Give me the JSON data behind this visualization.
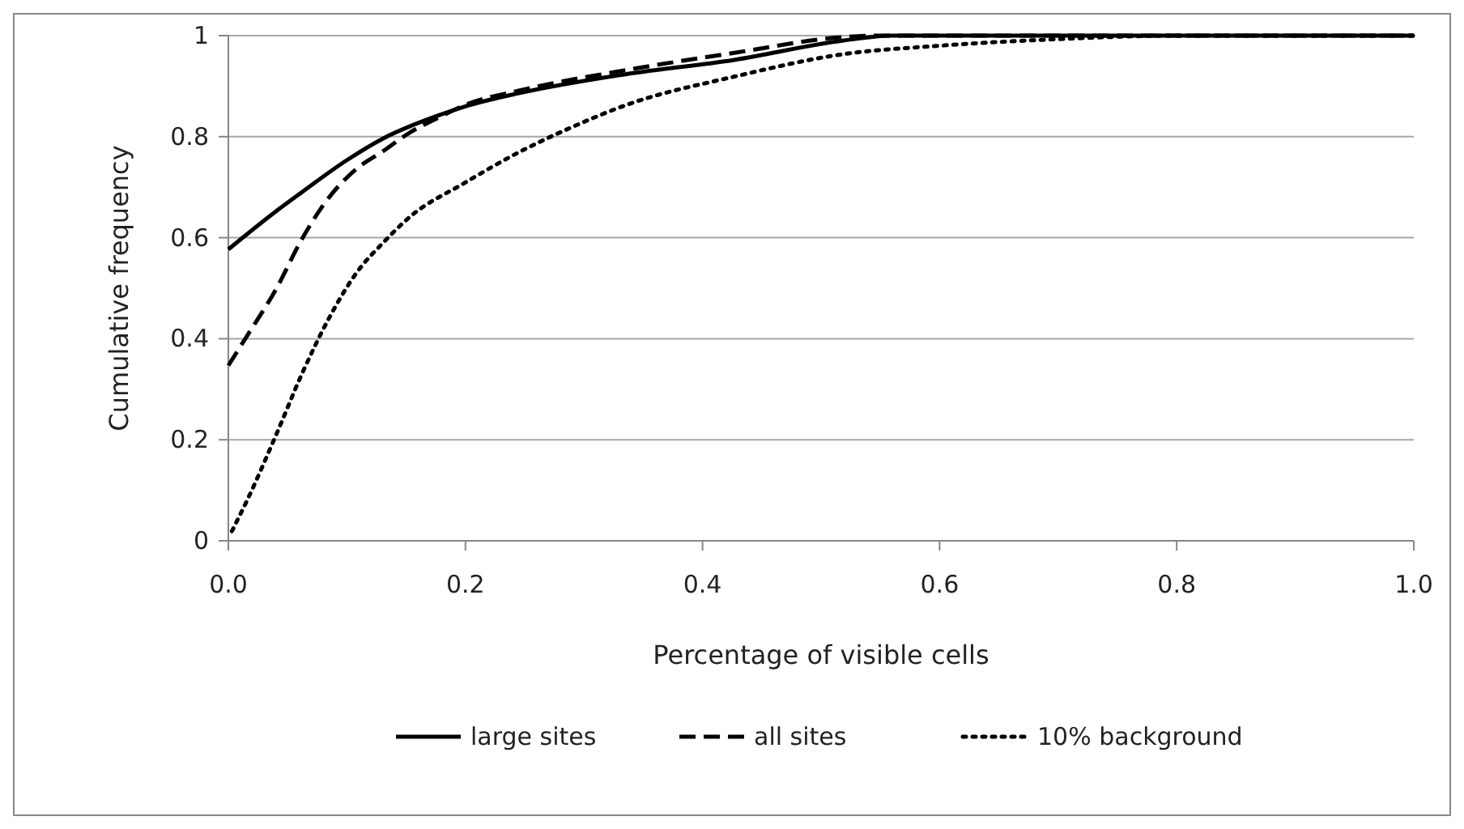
{
  "chart_data": {
    "type": "line",
    "xlabel": "Percentage of visible cells",
    "ylabel": "Cumulative frequency",
    "xlim": [
      0,
      1
    ],
    "ylim": [
      0,
      1
    ],
    "xticks": [
      {
        "value": 0,
        "label": "0.0"
      },
      0.2,
      0.4,
      0.6,
      0.8,
      {
        "value": 1,
        "label": "1.0"
      }
    ],
    "yticks": [
      0,
      0.2,
      0.4,
      0.6,
      0.8,
      1
    ],
    "grid": "y",
    "legend": "bottom",
    "marker": "none",
    "series": [
      {
        "name": "large sites",
        "color": "#000000",
        "line_style": "solid",
        "x": [
          0,
          0.04,
          0.062,
          0.099,
          0.131,
          0.176,
          0.2,
          0.245,
          0.336,
          0.427,
          0.518,
          0.56,
          0.7,
          1
        ],
        "values": [
          0.577,
          0.652,
          0.69,
          0.752,
          0.797,
          0.841,
          0.86,
          0.886,
          0.924,
          0.952,
          0.99,
          1,
          1,
          1
        ]
      },
      {
        "name": "all sites",
        "color": "#000000",
        "line_style": "dashed",
        "x": [
          0,
          0.017,
          0.04,
          0.062,
          0.085,
          0.108,
          0.131,
          0.153,
          0.176,
          0.2,
          0.245,
          0.336,
          0.427,
          0.518,
          0.55,
          0.7,
          1
        ],
        "values": [
          0.347,
          0.41,
          0.497,
          0.597,
          0.68,
          0.736,
          0.772,
          0.808,
          0.836,
          0.863,
          0.891,
          0.932,
          0.966,
          0.997,
          1,
          1,
          1
        ]
      },
      {
        "name": "10% background",
        "color": "#000000",
        "line_style": "dotted",
        "x": [
          0.003,
          0.017,
          0.04,
          0.062,
          0.085,
          0.108,
          0.131,
          0.153,
          0.199,
          0.245,
          0.29,
          0.336,
          0.427,
          0.518,
          0.6,
          0.7,
          0.8,
          1
        ],
        "values": [
          0.019,
          0.086,
          0.208,
          0.33,
          0.441,
          0.53,
          0.591,
          0.641,
          0.708,
          0.769,
          0.819,
          0.863,
          0.919,
          0.963,
          0.98,
          0.993,
          1,
          1
        ]
      }
    ]
  }
}
